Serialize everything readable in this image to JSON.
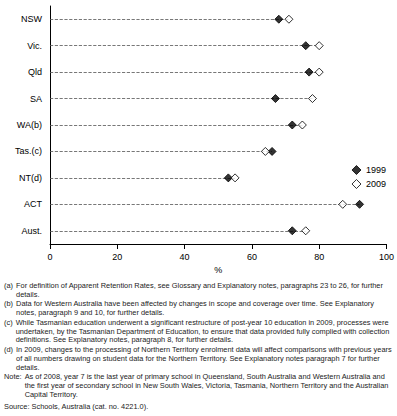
{
  "chart_data": {
    "type": "dot",
    "orientation": "horizontal",
    "categories": [
      "NSW",
      "Vic.",
      "Qld",
      "SA",
      "WA(b)",
      "Tas.(c)",
      "NT(d)",
      "ACT",
      "Aust."
    ],
    "series": [
      {
        "name": "1999",
        "color": "#000000",
        "marker": "filled_diamond",
        "values": [
          68,
          76,
          77,
          67,
          72,
          66,
          53,
          92,
          72
        ]
      },
      {
        "name": "2009",
        "color": "#000000",
        "marker": "open_diamond",
        "values": [
          71,
          80,
          80,
          78,
          75,
          64,
          55,
          87,
          76
        ]
      }
    ],
    "xlabel": "%",
    "xlim": [
      0,
      100
    ],
    "xticks": [
      0,
      20,
      40,
      60,
      80,
      100
    ],
    "grid": false,
    "legend": "right",
    "line_style": "dashed",
    "annotations": [
      {
        "label": "(a)",
        "text": "For definition of Apparent Retention Rates, see Glossary and Explanatory notes, paragraphs 23 to 26, for further details."
      },
      {
        "label": "(b)",
        "text": "Data for Western Australia have been affected by changes in scope and coverage over time. See Explanatory notes, paragraph 9 and 10, for further details."
      },
      {
        "label": "(c)",
        "text": "While Tasmanian education underwent a significant restructure of post-year 10 education in 2009, processes were undertaken, by the Tasmanian Department of Education, to ensure that data provided fully complied with collection definitions. See Explanatory notes, paragraph 8, for further details."
      },
      {
        "label": "(d)",
        "text": "In 2009, changes to the processing of Northern Territory enrolment data will affect comparisons with previous years of all numbers drawing on student data for the Northern Territory. See Explanatory notes paragraph 7 for further details."
      },
      {
        "label": "Note:",
        "text": "As of 2008, year 7 is the last year of primary school in Queensland, South Australia and Western Australia and the first year of secondary school in New South Wales, Victoria, Tasmania, Northern Territory and the Australian Capital Territory."
      }
    ],
    "source": "Source: Schools, Australia (cat. no. 4221.0)."
  }
}
